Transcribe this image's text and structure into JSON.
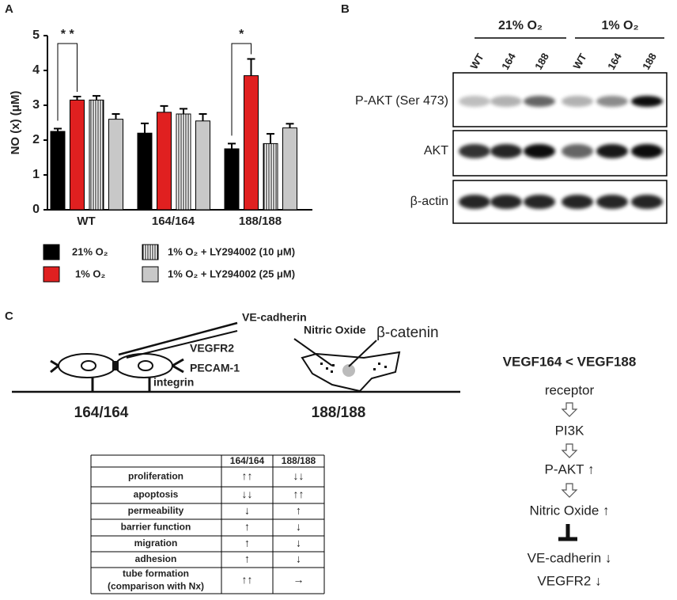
{
  "chart_data": {
    "type": "bar",
    "panel_label": "A",
    "y_label": "NO (x) (μM)",
    "categories": [
      "WT",
      "164/164",
      "188/188"
    ],
    "series": [
      {
        "name": "21% O₂",
        "color": "#000000",
        "values": [
          2.25,
          2.2,
          1.75
        ],
        "errors": [
          0.08,
          0.28,
          0.15
        ]
      },
      {
        "name": "1% O₂",
        "color": "#e02020",
        "values": [
          3.15,
          2.8,
          3.85
        ],
        "errors": [
          0.1,
          0.18,
          0.48
        ]
      },
      {
        "name": "1% O₂ + LY294002 (10 μM)",
        "color": "#ffffff",
        "pattern": "vertical-stripes",
        "values": [
          3.15,
          2.75,
          1.9
        ],
        "errors": [
          0.12,
          0.15,
          0.28
        ]
      },
      {
        "name": "1% O₂ + LY294002 (25 μM)",
        "color": "#c8c8c8",
        "values": [
          2.6,
          2.55,
          2.35
        ],
        "errors": [
          0.15,
          0.2,
          0.12
        ]
      }
    ],
    "ylim": [
      0,
      5
    ],
    "yticks": [
      0,
      1,
      2,
      3,
      4,
      5
    ],
    "annotations": [
      "* *",
      "*"
    ]
  },
  "panel_b": {
    "label": "B",
    "groups": [
      "21% O₂",
      "1% O₂"
    ],
    "lanes": [
      "WT",
      "164",
      "188",
      "WT",
      "164",
      "188"
    ],
    "rows": [
      "P-AKT (Ser 473)",
      "AKT",
      "β-actin"
    ]
  },
  "panel_c": {
    "label": "C",
    "diagram": {
      "ve_cadherin": "VE-cadherin",
      "nitric_oxide": "Nitric Oxide",
      "beta_catenin": "β-catenin",
      "vegfr2": "VEGFR2",
      "pecam1": "PECAM-1",
      "integrin": "integrin",
      "genotypes": [
        "164/164",
        "188/188"
      ]
    },
    "pathway": {
      "title": "VEGF164 < VEGF188",
      "steps": [
        "receptor",
        "PI3K",
        "P-AKT ↑",
        "Nitric Oxide ↑",
        "VE-cadherin ↓",
        "VEGFR2 ↓"
      ]
    },
    "table": {
      "header": [
        "164/164",
        "188/188"
      ],
      "rows": [
        {
          "label": "proliferation",
          "cells": [
            "↑↑",
            "↓↓"
          ]
        },
        {
          "label": "apoptosis",
          "cells": [
            "↓↓",
            "↑↑"
          ]
        },
        {
          "label": "permeability",
          "cells": [
            "↓",
            "↑"
          ]
        },
        {
          "label": "barrier function",
          "cells": [
            "↑",
            "↓"
          ]
        },
        {
          "label": "migration",
          "cells": [
            "↑",
            "↓"
          ]
        },
        {
          "label": "adhesion",
          "cells": [
            "↑",
            "↓"
          ]
        },
        {
          "label": "tube formation",
          "sublabel": "(comparison with Nx)",
          "cells": [
            "↑↑",
            "→"
          ]
        }
      ]
    }
  }
}
